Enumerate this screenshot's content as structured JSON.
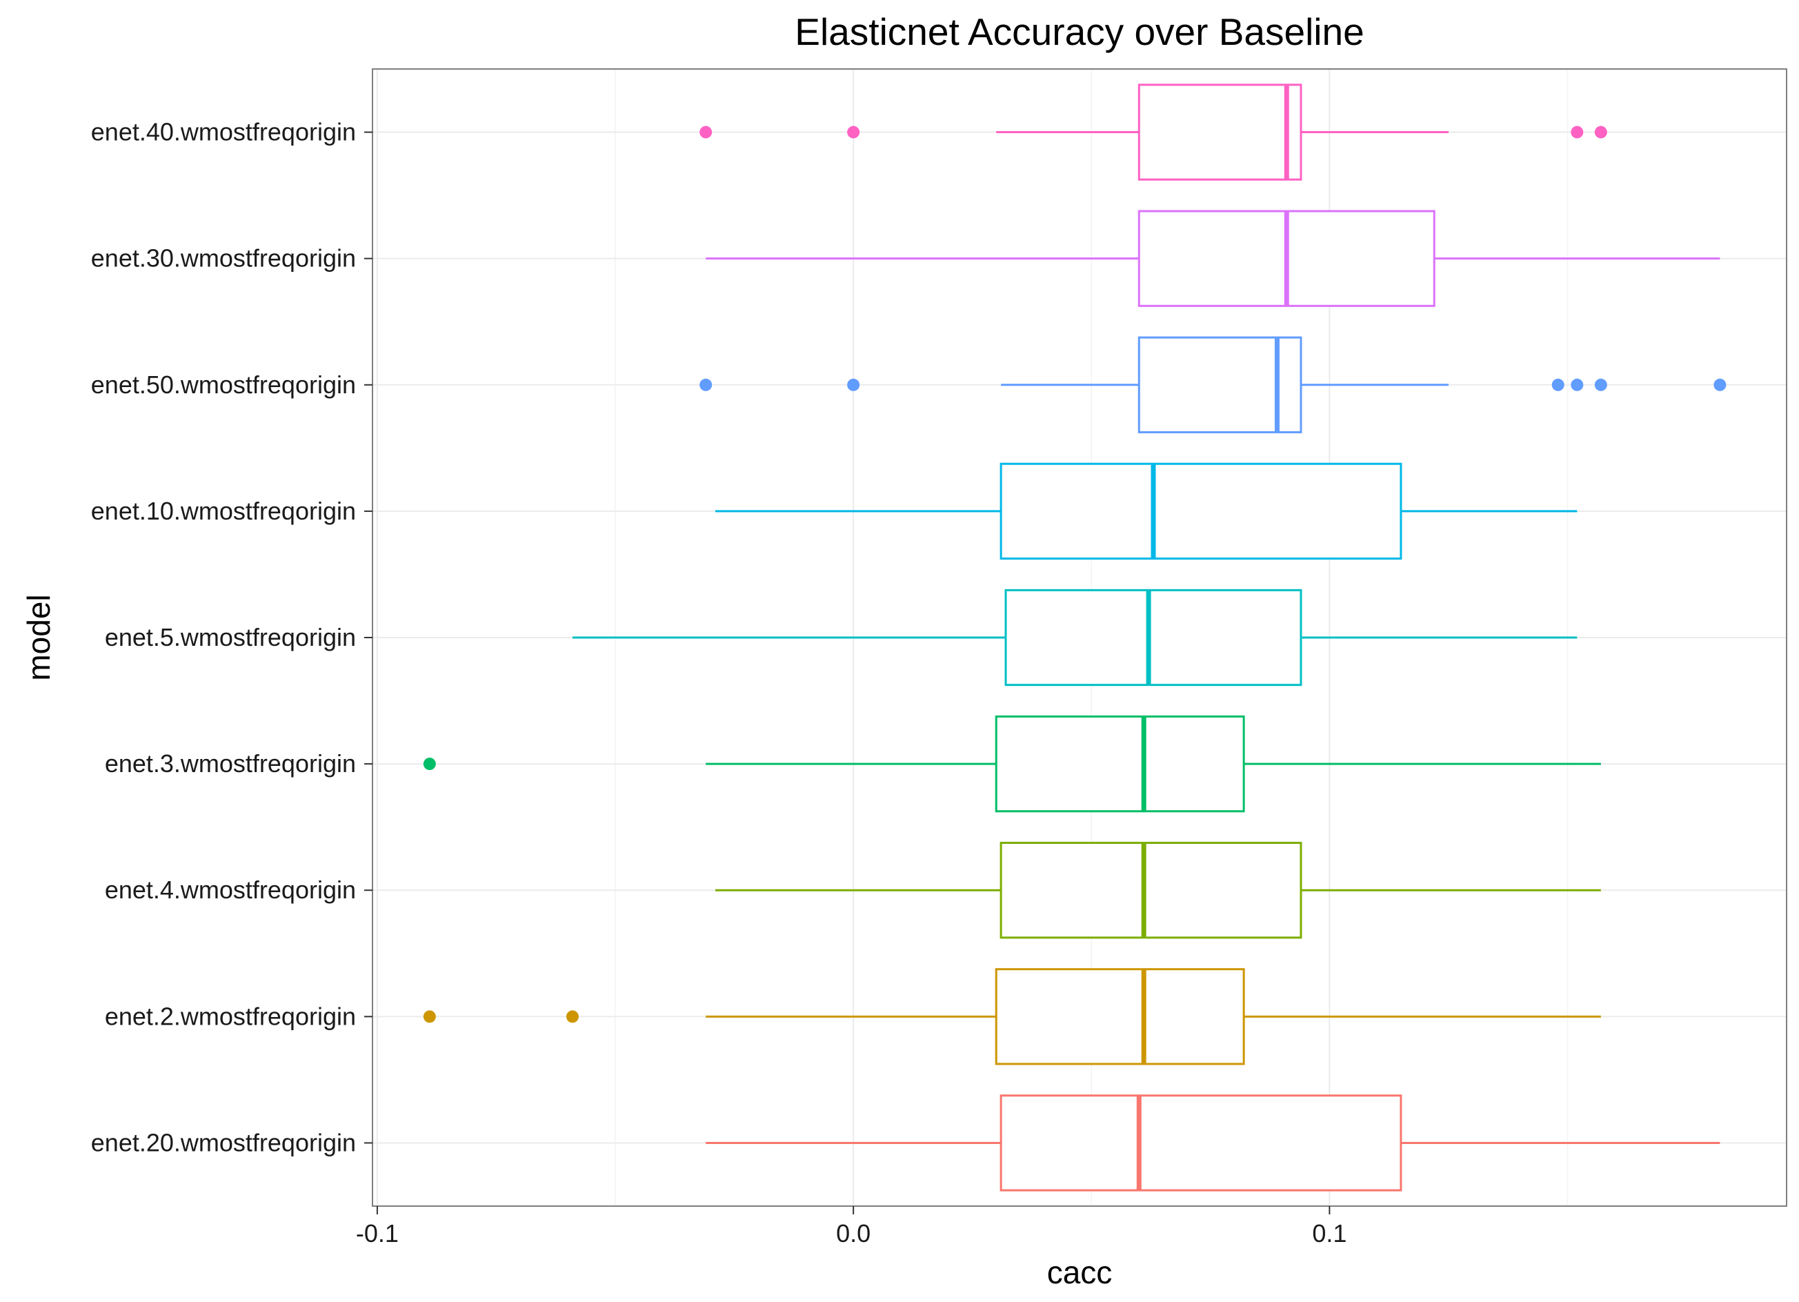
{
  "chart_data": {
    "type": "boxplot",
    "orientation": "horizontal",
    "title": "Elasticnet Accuracy over Baseline",
    "xlabel": "cacc",
    "ylabel": "model",
    "xlim": [
      -0.101,
      0.196
    ],
    "xticks": [
      {
        "value": -0.1,
        "label": "-0.1"
      },
      {
        "value": 0.0,
        "label": "0.0"
      },
      {
        "value": 0.1,
        "label": "0.1"
      }
    ],
    "grid": true,
    "legend": "none",
    "series": [
      {
        "category": "enet.20.wmostfreqorigin",
        "color": "#F8766D",
        "min": -0.031,
        "q1": 0.031,
        "median": 0.06,
        "q3": 0.115,
        "max": 0.182,
        "outliers": []
      },
      {
        "category": "enet.2.wmostfreqorigin",
        "color": "#CD9600",
        "min": -0.031,
        "q1": 0.03,
        "median": 0.061,
        "q3": 0.082,
        "max": 0.157,
        "outliers": [
          -0.089,
          -0.059
        ]
      },
      {
        "category": "enet.4.wmostfreqorigin",
        "color": "#7CAE00",
        "min": -0.029,
        "q1": 0.031,
        "median": 0.061,
        "q3": 0.094,
        "max": 0.157,
        "outliers": []
      },
      {
        "category": "enet.3.wmostfreqorigin",
        "color": "#00BE67",
        "min": -0.031,
        "q1": 0.03,
        "median": 0.061,
        "q3": 0.082,
        "max": 0.157,
        "outliers": [
          -0.089
        ]
      },
      {
        "category": "enet.5.wmostfreqorigin",
        "color": "#00BFC4",
        "min": -0.059,
        "q1": 0.032,
        "median": 0.062,
        "q3": 0.094,
        "max": 0.152,
        "outliers": []
      },
      {
        "category": "enet.10.wmostfreqorigin",
        "color": "#00B8E7",
        "min": -0.029,
        "q1": 0.031,
        "median": 0.063,
        "q3": 0.115,
        "max": 0.152,
        "outliers": []
      },
      {
        "category": "enet.50.wmostfreqorigin",
        "color": "#619CFF",
        "min": 0.031,
        "q1": 0.06,
        "median": 0.089,
        "q3": 0.094,
        "max": 0.125,
        "outliers": [
          -0.031,
          0.0,
          0.148,
          0.152,
          0.157,
          0.182
        ]
      },
      {
        "category": "enet.30.wmostfreqorigin",
        "color": "#DB72FB",
        "min": -0.031,
        "q1": 0.06,
        "median": 0.091,
        "q3": 0.122,
        "max": 0.182,
        "outliers": []
      },
      {
        "category": "enet.40.wmostfreqorigin",
        "color": "#FF61C3",
        "min": 0.03,
        "q1": 0.06,
        "median": 0.091,
        "q3": 0.094,
        "max": 0.125,
        "outliers": [
          -0.031,
          0.0,
          0.152,
          0.157
        ]
      }
    ]
  }
}
